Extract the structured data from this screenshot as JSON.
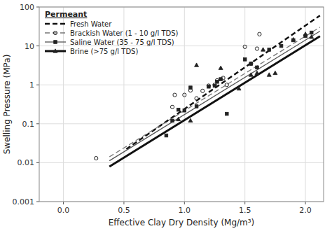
{
  "chart_data": {
    "type": "line",
    "xlabel": "Effective Clay Dry Density (Mg/m³)",
    "ylabel": "Swelling Pressure (MPa)",
    "legend_title": "Permeant",
    "log": "y",
    "grid": true,
    "legend": "upper left",
    "xlim": [
      -0.2,
      2.15
    ],
    "xticks": [
      {
        "value": 0,
        "label": "0.0"
      },
      0.5,
      {
        "value": 1.0,
        "label": "1.0"
      },
      1.5,
      {
        "value": 2.0,
        "label": "2.0"
      }
    ],
    "ylim": [
      0.001,
      100
    ],
    "yticks": [
      0.001,
      0.01,
      0.1,
      1,
      10,
      100
    ],
    "series": [
      {
        "name": "Fresh Water",
        "color": "#111111",
        "line_style": "dashed",
        "x": [
          0.52,
          2.12
        ],
        "values": [
          0.022387211385683396,
          60.25595860743578
        ]
      },
      {
        "name": "Brackish Water (1 - 10 g/l TDS)",
        "color": "#777777",
        "line_style": "dashed",
        "x": [
          0.38,
          2.12
        ],
        "values": [
          0.014125375446227544,
          30.19951720402016
        ],
        "points": {
          "marker": "open-circle",
          "color": "#222222",
          "x": [
            0.27,
            0.9,
            0.92,
            1.0,
            1.05,
            1.1,
            1.15,
            1.2,
            1.25,
            1.27,
            1.32,
            1.35,
            1.5,
            1.55,
            1.6,
            1.62
          ],
          "values": [
            0.013,
            0.27,
            0.55,
            0.55,
            0.72,
            0.45,
            0.7,
            0.95,
            1.0,
            1.3,
            1.5,
            1.0,
            9.5,
            3.5,
            8.5,
            20.0
          ]
        }
      },
      {
        "name": "Saline Water (35 - 75 g/l TDS)",
        "color": "#555555",
        "line_style": "solid",
        "x": [
          0.38,
          2.12
        ],
        "values": [
          0.011220184543019634,
          23.9883291901949
        ],
        "points": {
          "marker": "square",
          "color": "#222222",
          "x": [
            0.85,
            0.9,
            0.95,
            1.0,
            1.05,
            1.1,
            1.2,
            1.25,
            1.27,
            1.3,
            1.35,
            1.5,
            1.55,
            1.6,
            1.7,
            1.8,
            1.9,
            2.0,
            2.05
          ],
          "values": [
            0.05,
            0.12,
            0.23,
            0.22,
            0.85,
            0.28,
            0.9,
            0.95,
            1.2,
            1.4,
            0.18,
            4.5,
            3.5,
            2.8,
            8.0,
            10.0,
            14.0,
            18.0,
            22.0
          ]
        }
      },
      {
        "name": "Brine (>75 g/l TDS)",
        "color": "#111111",
        "line_style": "solid",
        "x": [
          0.38,
          2.12
        ],
        "values": [
          0.007943282347242816,
          17.78279410038923
        ],
        "points": {
          "marker": "triangle",
          "color": "#222222",
          "x": [
            0.95,
            1.05,
            1.1,
            1.3,
            1.45,
            1.55,
            1.6,
            1.65,
            1.7,
            1.75,
            1.9,
            2.0,
            2.05
          ],
          "values": [
            0.13,
            0.12,
            3.2,
            2.7,
            0.8,
            1.8,
            2.0,
            8.0,
            1.8,
            2.0,
            14.5,
            20.0,
            17.0
          ]
        }
      }
    ]
  }
}
